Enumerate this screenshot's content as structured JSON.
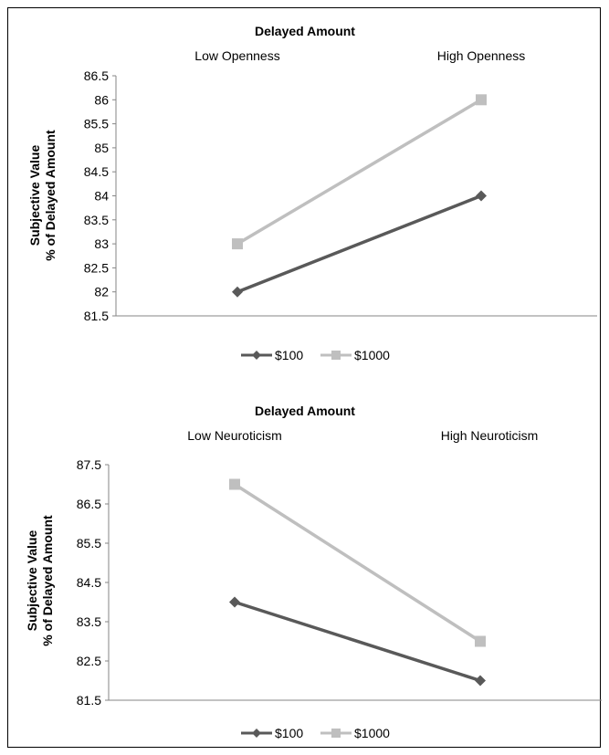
{
  "chart_data": [
    {
      "type": "line",
      "title": "Delayed Amount",
      "categories": [
        "Low Openness",
        "High Openness"
      ],
      "ylabel": [
        "Subjective Value",
        "% of Delayed Amount"
      ],
      "ylim": [
        81.5,
        86.5
      ],
      "yticks": [
        "81.5",
        "82",
        "82.5",
        "83",
        "83.5",
        "84",
        "84.5",
        "85",
        "85.5",
        "86",
        "86.5"
      ],
      "series": [
        {
          "name": "$100",
          "values": [
            82,
            84
          ],
          "color": "#595959",
          "marker": "diamond"
        },
        {
          "name": "$1000",
          "values": [
            83,
            86
          ],
          "color": "#bfbfbf",
          "marker": "square"
        }
      ],
      "legend_position": "bottom"
    },
    {
      "type": "line",
      "title": "Delayed Amount",
      "categories": [
        "Low Neuroticism",
        "High Neuroticism"
      ],
      "ylabel": [
        "Subjective Value",
        "% of Delayed Amount"
      ],
      "ylim": [
        81.5,
        87.5
      ],
      "yticks": [
        "81.5",
        "82.5",
        "83.5",
        "84.5",
        "85.5",
        "86.5",
        "87.5"
      ],
      "series": [
        {
          "name": "$100",
          "values": [
            84,
            82
          ],
          "color": "#595959",
          "marker": "diamond"
        },
        {
          "name": "$1000",
          "values": [
            87,
            83
          ],
          "color": "#bfbfbf",
          "marker": "square"
        }
      ],
      "legend_position": "bottom"
    }
  ]
}
